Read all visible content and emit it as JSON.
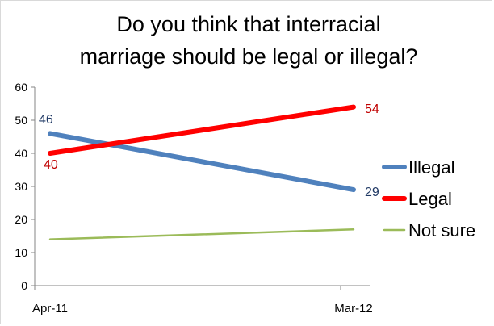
{
  "chart_data": {
    "type": "line",
    "title_lines": [
      "Do you think that interracial",
      "marriage should be legal or illegal?"
    ],
    "categories": [
      "Apr-11",
      "Mar-12"
    ],
    "ylim": [
      0,
      60
    ],
    "yticks": [
      0,
      10,
      20,
      30,
      40,
      50,
      60
    ],
    "ytick_labels": [
      "0",
      "10",
      "20",
      "30",
      "40",
      "50",
      "60"
    ],
    "grid": false,
    "legend_position": "right",
    "series": [
      {
        "name": "Illegal",
        "values": [
          46,
          29
        ],
        "color": "#4f81bd",
        "labels": [
          "46",
          "29"
        ],
        "label_color": "#1f3864"
      },
      {
        "name": "Legal",
        "values": [
          40,
          54
        ],
        "color": "#ff0000",
        "labels": [
          "40",
          "54"
        ],
        "label_color": "#c00000"
      },
      {
        "name": "Not sure",
        "values": [
          14,
          17
        ],
        "color": "#9bbb59",
        "labels": [
          "",
          ""
        ],
        "label_color": "#000000"
      }
    ]
  }
}
